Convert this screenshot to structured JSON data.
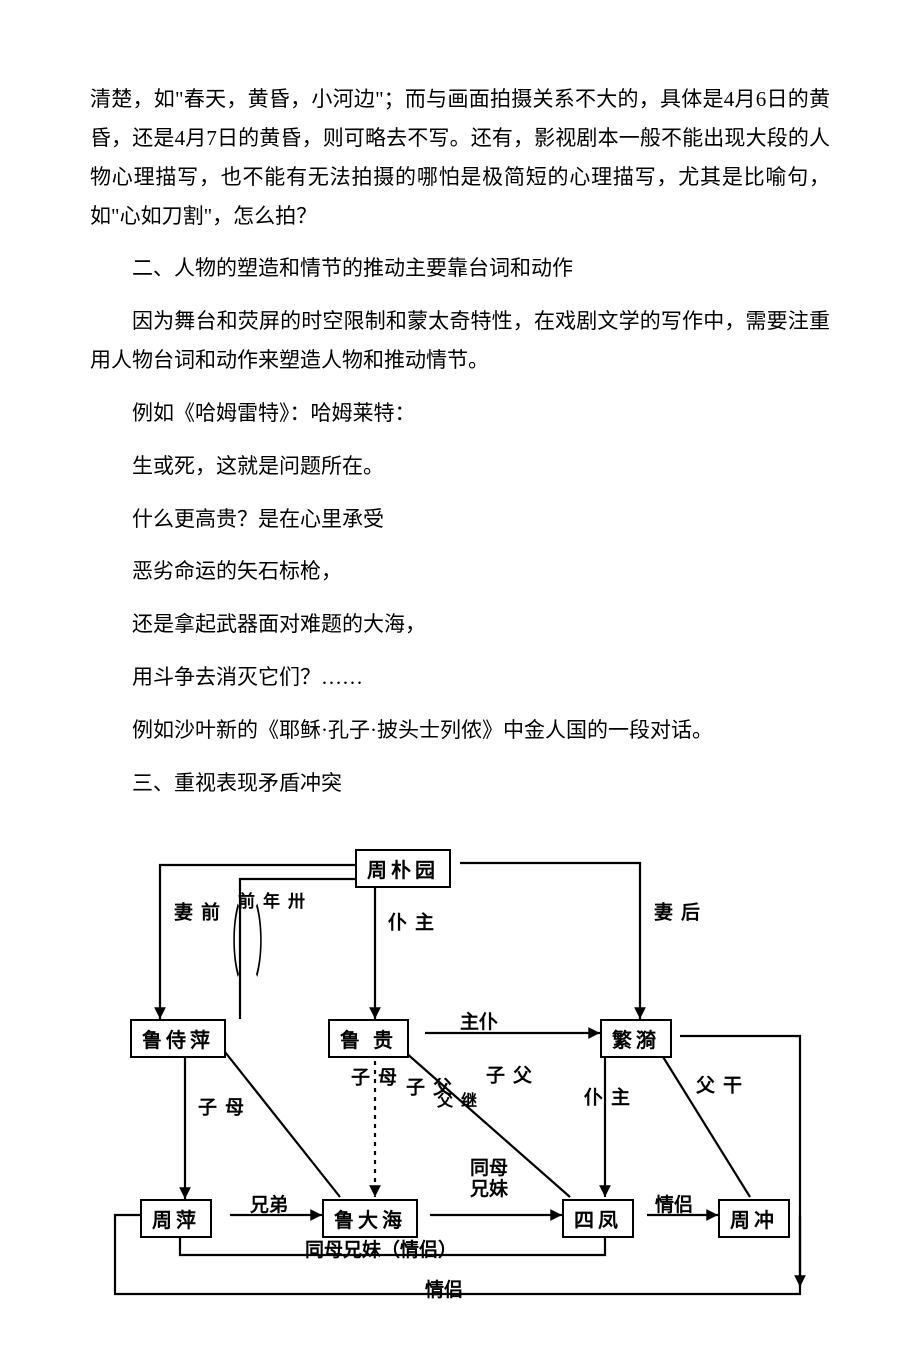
{
  "paragraphs": {
    "p1": "清楚，如\"春天，黄昏，小河边\"；而与画面拍摄关系不大的，具体是4月6日的黄昏，还是4月7日的黄昏，则可略去不写。还有，影视剧本一般不能出现大段的人物心理描写，也不能有无法拍摄的哪怕是极简短的心理描写，尤其是比喻句，如\"心如刀割\"，怎么拍？",
    "p2": "二、人物的塑造和情节的推动主要靠台词和动作",
    "p3": "因为舞台和荧屏的时空限制和蒙太奇特性，在戏剧文学的写作中，需要注重用人物台词和动作来塑造人物和推动情节。",
    "p4": "例如《哈姆雷特》：哈姆莱特：",
    "p5": "生或死，这就是问题所在。",
    "p6": "什么更高贵？是在心里承受",
    "p7": "恶劣命运的矢石标枪，",
    "p8": "还是拿起武器面对难题的大海，",
    "p9": "用斗争去消灭它们？……",
    "p10": "例如沙叶新的《耶稣·孔子·披头士列侬》中金人国的一段对话。",
    "p11": "三、重视表现矛盾冲突"
  },
  "diagram": {
    "nodes": {
      "zhoupuyuan": "周朴园",
      "lushi": "鲁侍萍",
      "lugui": "鲁 贵",
      "fanyi": "繁漪",
      "zhouping": "周萍",
      "ludahai": "鲁大海",
      "sifeng": "四凤",
      "zhouchong": "周冲"
    },
    "edge_labels": {
      "qianqi": "前\n妻",
      "sanshi": "卅\n年\n前",
      "zhupu1": "主\n仆",
      "houqi": "后\n妻",
      "muzi1": "母\n子",
      "fuzi1": "父\n子",
      "jifu": "继\n父",
      "fuzi2": "父\n子",
      "zhupu2": "主仆",
      "zhupu3": "主\n仆",
      "ganfu": "干\n父",
      "muzi2": "母\n子",
      "xiongdi": "兄弟",
      "tongmu1": "同母\n兄妹",
      "qinglv1": "情侣",
      "tongmu_qinglv": "同母兄妹（情侣）",
      "qinglv2": "情侣"
    },
    "paren_left": "（",
    "paren_right": "）",
    "style": {
      "stroke": "#000000",
      "stroke_width": 2.2,
      "dash": "3,4"
    }
  }
}
